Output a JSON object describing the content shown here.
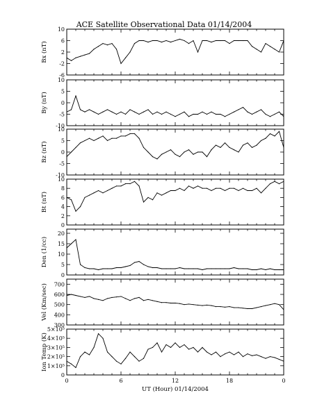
{
  "chart_data": {
    "type": "line",
    "title": "ACE Satellite Observational Data   01/14/2004",
    "xlabel": "UT (Hour)  01/14/2004",
    "x_ticks": [
      "0",
      "6",
      "12",
      "18",
      "0"
    ],
    "xlim": [
      0,
      24
    ],
    "grid": false,
    "legend": "none",
    "panels": [
      {
        "ylabel": "Bx (nT)",
        "ylim": [
          -6,
          10
        ],
        "yticks": [
          "10",
          "6",
          "2",
          "-2",
          "-6"
        ],
        "ytick_values": [
          10,
          6,
          2,
          -2,
          -6
        ],
        "series": {
          "x": [
            0,
            0.5,
            1,
            1.5,
            2,
            2.5,
            3,
            3.5,
            4,
            4.5,
            5,
            5.5,
            6,
            6.5,
            7,
            7.5,
            8,
            8.5,
            9,
            9.5,
            10,
            10.5,
            11,
            11.5,
            12,
            12.5,
            13,
            13.5,
            14,
            14.5,
            15,
            15.5,
            16,
            16.5,
            17,
            17.5,
            18,
            18.5,
            19,
            19.5,
            20,
            20.5,
            21,
            21.5,
            22,
            22.5,
            23,
            23.5,
            24
          ],
          "y": [
            0,
            -1,
            0,
            0.5,
            1,
            1.5,
            3,
            4,
            5,
            4.5,
            5,
            3,
            -2,
            0,
            2,
            5,
            6,
            6,
            5.5,
            6,
            6,
            5.5,
            6,
            5.5,
            6,
            6.5,
            6,
            5,
            6,
            2,
            6,
            6,
            5.5,
            6,
            6,
            6,
            5,
            6,
            6,
            6,
            6,
            4,
            3,
            2,
            5,
            4,
            3,
            2,
            6
          ]
        }
      },
      {
        "ylabel": "By (nT)",
        "ylim": [
          -10,
          10
        ],
        "yticks": [
          "10",
          "5",
          "0",
          "-5",
          "-10"
        ],
        "ytick_values": [
          10,
          5,
          0,
          -5,
          -10
        ],
        "series": {
          "x": [
            0,
            0.5,
            1,
            1.5,
            2,
            2.5,
            3,
            3.5,
            4,
            4.5,
            5,
            5.5,
            6,
            6.5,
            7,
            7.5,
            8,
            8.5,
            9,
            9.5,
            10,
            10.5,
            11,
            11.5,
            12,
            12.5,
            13,
            13.5,
            14,
            14.5,
            15,
            15.5,
            16,
            16.5,
            17,
            17.5,
            18,
            18.5,
            19,
            19.5,
            20,
            20.5,
            21,
            21.5,
            22,
            22.5,
            23,
            23.5,
            24
          ],
          "y": [
            -4,
            -3,
            3,
            -3,
            -4,
            -3,
            -4,
            -5,
            -4,
            -3,
            -4,
            -5,
            -4,
            -5,
            -3,
            -4,
            -5,
            -4,
            -3,
            -5,
            -4,
            -5,
            -4,
            -5,
            -6,
            -5,
            -4,
            -6,
            -5,
            -5,
            -4,
            -5,
            -4,
            -5,
            -5,
            -6,
            -5,
            -4,
            -3,
            -2,
            -4,
            -5,
            -4,
            -3,
            -5,
            -6,
            -5,
            -4,
            -6
          ]
        }
      },
      {
        "ylabel": "Bz (nT)",
        "ylim": [
          -10,
          10
        ],
        "yticks": [
          "10",
          "5",
          "0",
          "-5",
          "-10"
        ],
        "ytick_values": [
          10,
          5,
          0,
          -5,
          -10
        ],
        "series": {
          "x": [
            0,
            0.5,
            1,
            1.5,
            2,
            2.5,
            3,
            3.5,
            4,
            4.5,
            5,
            5.5,
            6,
            6.5,
            7,
            7.5,
            8,
            8.5,
            9,
            9.5,
            10,
            10.5,
            11,
            11.5,
            12,
            12.5,
            13,
            13.5,
            14,
            14.5,
            15,
            15.5,
            16,
            16.5,
            17,
            17.5,
            18,
            18.5,
            19,
            19.5,
            20,
            20.5,
            21,
            21.5,
            22,
            22.5,
            23,
            23.5,
            24
          ],
          "y": [
            -2,
            0,
            2,
            4,
            5,
            6,
            5,
            6,
            7,
            5,
            6,
            6,
            7,
            7,
            8,
            8,
            6,
            2,
            0,
            -2,
            -3,
            -1,
            0,
            1,
            -1,
            -2,
            0,
            1,
            -1,
            0,
            0,
            -2,
            1,
            3,
            2,
            4,
            2,
            1,
            0,
            3,
            4,
            2,
            3,
            5,
            6,
            8,
            7,
            9,
            2
          ]
        }
      },
      {
        "ylabel": "Bt (nT)",
        "ylim": [
          0,
          10
        ],
        "yticks": [
          "10",
          "8",
          "6",
          "4",
          "2",
          "0"
        ],
        "ytick_values": [
          10,
          8,
          6,
          4,
          2,
          0
        ],
        "series": {
          "x": [
            0,
            0.5,
            1,
            1.5,
            2,
            2.5,
            3,
            3.5,
            4,
            4.5,
            5,
            5.5,
            6,
            6.5,
            7,
            7.5,
            8,
            8.5,
            9,
            9.5,
            10,
            10.5,
            11,
            11.5,
            12,
            12.5,
            13,
            13.5,
            14,
            14.5,
            15,
            15.5,
            16,
            16.5,
            17,
            17.5,
            18,
            18.5,
            19,
            19.5,
            20,
            20.5,
            21,
            21.5,
            22,
            22.5,
            23,
            23.5,
            24
          ],
          "y": [
            6,
            5.5,
            3,
            4,
            6,
            6.5,
            7,
            7.5,
            7,
            7.5,
            8,
            8.5,
            8.5,
            9,
            9,
            9.5,
            8.5,
            5,
            6,
            5.5,
            7,
            6.5,
            7,
            7.5,
            7.5,
            8,
            7.5,
            8.5,
            8,
            8.5,
            8,
            8,
            7.5,
            8,
            8,
            7.5,
            8,
            8,
            7.5,
            8,
            7.5,
            7.5,
            8,
            7,
            8,
            9,
            9.5,
            9,
            9.5
          ]
        }
      },
      {
        "ylabel": "Den (1/cc)",
        "ylim": [
          0,
          22
        ],
        "yticks": [
          "20",
          "15",
          "10",
          "5",
          "0"
        ],
        "ytick_values": [
          20,
          15,
          10,
          5,
          0
        ],
        "series": {
          "x": [
            0,
            0.5,
            1,
            1.5,
            2,
            2.5,
            3,
            3.5,
            4,
            4.5,
            5,
            5.5,
            6,
            6.5,
            7,
            7.5,
            8,
            8.5,
            9,
            9.5,
            10,
            10.5,
            11,
            11.5,
            12,
            12.5,
            13,
            13.5,
            14,
            14.5,
            15,
            15.5,
            16,
            16.5,
            17,
            17.5,
            18,
            18.5,
            19,
            19.5,
            20,
            20.5,
            21,
            21.5,
            22,
            22.5,
            23,
            23.5,
            24
          ],
          "y": [
            13,
            15,
            17,
            5,
            3.5,
            3,
            3,
            2.5,
            3,
            3,
            3,
            3.5,
            3.5,
            4,
            4.5,
            6,
            6.5,
            5,
            4,
            3.5,
            3.5,
            3,
            3,
            3,
            3,
            3.5,
            3,
            3,
            3,
            3,
            2.5,
            3,
            3,
            3,
            3,
            3,
            3,
            3.5,
            3,
            3,
            3,
            2.5,
            2.5,
            3,
            2.5,
            3,
            2.5,
            2.5,
            2.5
          ]
        }
      },
      {
        "ylabel": "Vel (Km/sec)",
        "ylim": [
          300,
          750
        ],
        "yticks": [
          "700",
          "600",
          "500",
          "400",
          "300"
        ],
        "ytick_values": [
          700,
          600,
          500,
          400,
          300
        ],
        "series": {
          "x": [
            0,
            0.5,
            1,
            1.5,
            2,
            2.5,
            3,
            3.5,
            4,
            4.5,
            5,
            5.5,
            6,
            6.5,
            7,
            7.5,
            8,
            8.5,
            9,
            9.5,
            10,
            10.5,
            11,
            11.5,
            12,
            12.5,
            13,
            13.5,
            14,
            14.5,
            15,
            15.5,
            16,
            16.5,
            17,
            17.5,
            18,
            18.5,
            19,
            19.5,
            20,
            20.5,
            21,
            21.5,
            22,
            22.5,
            23,
            23.5,
            24
          ],
          "y": [
            590,
            600,
            590,
            580,
            570,
            580,
            560,
            550,
            540,
            560,
            570,
            575,
            580,
            560,
            540,
            560,
            570,
            540,
            550,
            540,
            530,
            520,
            520,
            515,
            515,
            510,
            500,
            505,
            500,
            495,
            490,
            495,
            490,
            480,
            480,
            475,
            480,
            470,
            470,
            465,
            460,
            460,
            470,
            480,
            490,
            500,
            510,
            500,
            450
          ]
        }
      },
      {
        "ylabel": "Ion Temp (K)",
        "ylim": [
          0,
          500000
        ],
        "yticks": [
          "5×10⁵",
          "4×10⁵",
          "3×10⁵",
          "2×10⁵",
          "1×10⁵",
          "0"
        ],
        "ytick_values": [
          500000,
          400000,
          300000,
          200000,
          100000,
          0
        ],
        "series": {
          "x": [
            0,
            0.5,
            1,
            1.5,
            2,
            2.5,
            3,
            3.5,
            4,
            4.5,
            5,
            5.5,
            6,
            6.5,
            7,
            7.5,
            8,
            8.5,
            9,
            9.5,
            10,
            10.5,
            11,
            11.5,
            12,
            12.5,
            13,
            13.5,
            14,
            14.5,
            15,
            15.5,
            16,
            16.5,
            17,
            17.5,
            18,
            18.5,
            19,
            19.5,
            20,
            20.5,
            21,
            21.5,
            22,
            22.5,
            23,
            23.5,
            24
          ],
          "y": [
            150000,
            120000,
            80000,
            200000,
            250000,
            220000,
            300000,
            450000,
            400000,
            250000,
            200000,
            150000,
            120000,
            180000,
            250000,
            200000,
            150000,
            180000,
            280000,
            300000,
            350000,
            250000,
            330000,
            300000,
            350000,
            300000,
            330000,
            280000,
            300000,
            250000,
            300000,
            250000,
            220000,
            250000,
            200000,
            230000,
            250000,
            220000,
            250000,
            200000,
            230000,
            210000,
            220000,
            200000,
            180000,
            200000,
            190000,
            170000,
            150000
          ]
        }
      }
    ]
  }
}
